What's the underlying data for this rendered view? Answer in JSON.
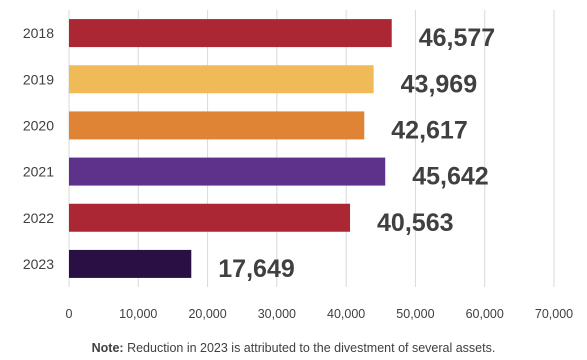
{
  "chart_data": {
    "type": "bar",
    "orientation": "horizontal",
    "categories": [
      "2018",
      "2019",
      "2020",
      "2021",
      "2022",
      "2023"
    ],
    "values": [
      46577,
      43969,
      42617,
      45642,
      40563,
      17649
    ],
    "value_labels": [
      "46,577",
      "43,969",
      "42,617",
      "45,642",
      "40,563",
      "17,649"
    ],
    "bar_colors": [
      "#ab2733",
      "#f0ba59",
      "#df8434",
      "#5e318b",
      "#ab2733",
      "#2a0f44"
    ],
    "xlim": [
      0,
      70000
    ],
    "xticks": [
      0,
      10000,
      20000,
      30000,
      40000,
      50000,
      60000,
      70000
    ],
    "xtick_labels": [
      "0",
      "10,000",
      "20,000",
      "30,000",
      "40,000",
      "50,000",
      "60,000",
      "70,000"
    ],
    "grid": "vertical",
    "title": "",
    "xlabel": "",
    "ylabel": ""
  },
  "note": {
    "label": "Note:",
    "text": " Reduction in 2023 is attributed to the divestment of several assets."
  }
}
